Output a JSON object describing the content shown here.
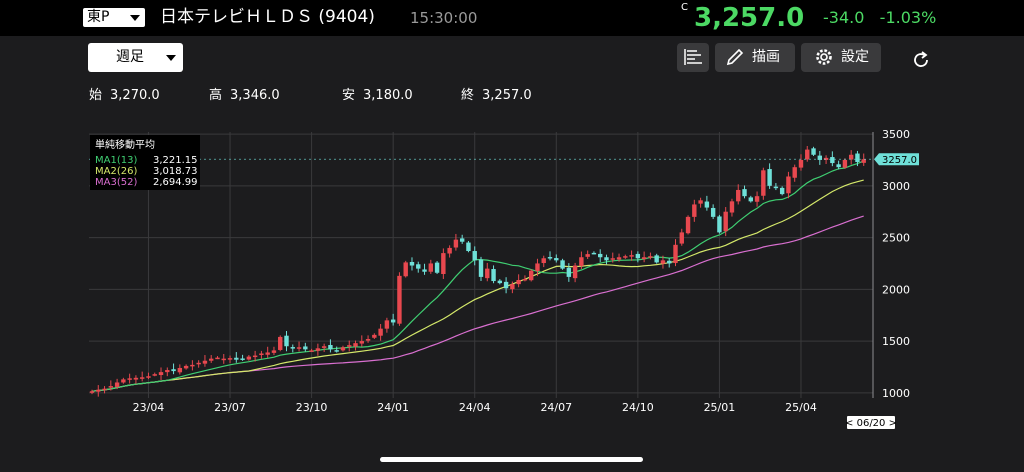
{
  "header": {
    "market": "東P",
    "name": "日本テレビＨＬＤＳ",
    "code": "(9404)",
    "time": "15:30:00",
    "price_flag": "C",
    "price": "3,257.0",
    "change": "-34.0",
    "change_pct": "-1.03%"
  },
  "toolbar": {
    "period": "週足",
    "draw_label": "描画",
    "settings_label": "設定"
  },
  "ohlc": {
    "open_label": "始",
    "open": "3,270.0",
    "high_label": "高",
    "high": "3,346.0",
    "low_label": "安",
    "low": "3,180.0",
    "close_label": "終",
    "close": "3,257.0"
  },
  "colors": {
    "up": "#e8484f",
    "down": "#6fe0d8",
    "ma1": "#3fcf72",
    "ma2": "#d4e86a",
    "ma3": "#d96fd0",
    "price_accent": "#4cd964"
  },
  "chart_data": {
    "type": "candlestick",
    "legend": {
      "title": "単純移動平均",
      "items": [
        {
          "name": "MA1(13)",
          "value": "3,221.15"
        },
        {
          "name": "MA2(26)",
          "value": "3,018.73"
        },
        {
          "name": "MA3(52)",
          "value": "2,694.99"
        }
      ]
    },
    "ylim": [
      950,
      3520
    ],
    "y_ticks": [
      1000,
      1500,
      2000,
      2500,
      3000,
      3500
    ],
    "x_ticks": [
      {
        "label": "23/04",
        "week": 9
      },
      {
        "label": "23/07",
        "week": 22
      },
      {
        "label": "23/10",
        "week": 35
      },
      {
        "label": "24/01",
        "week": 48
      },
      {
        "label": "24/04",
        "week": 61
      },
      {
        "label": "24/07",
        "week": 74
      },
      {
        "label": "24/10",
        "week": 87
      },
      {
        "label": "25/01",
        "week": 100
      },
      {
        "label": "25/04",
        "week": 113
      }
    ],
    "x_range": [
      0,
      124
    ],
    "current_price": "3257.0",
    "current_price_value": 3257,
    "end_date": "< 06/20 >",
    "closes": [
      1015,
      1030,
      1040,
      1065,
      1100,
      1130,
      1140,
      1145,
      1150,
      1160,
      1180,
      1200,
      1220,
      1210,
      1240,
      1260,
      1270,
      1290,
      1310,
      1330,
      1340,
      1330,
      1335,
      1320,
      1330,
      1350,
      1360,
      1380,
      1390,
      1410,
      1540,
      1450,
      1430,
      1440,
      1420,
      1410,
      1430,
      1450,
      1420,
      1410,
      1440,
      1460,
      1480,
      1500,
      1520,
      1560,
      1620,
      1700,
      1680,
      2130,
      2260,
      2230,
      2200,
      2170,
      2250,
      2160,
      2350,
      2400,
      2480,
      2460,
      2370,
      2280,
      2120,
      2200,
      2080,
      2060,
      2010,
      2050,
      2090,
      2100,
      2180,
      2250,
      2300,
      2310,
      2280,
      2200,
      2120,
      2230,
      2310,
      2340,
      2350,
      2310,
      2280,
      2300,
      2310,
      2320,
      2330,
      2300,
      2310,
      2320,
      2260,
      2280,
      2250,
      2430,
      2550,
      2700,
      2820,
      2860,
      2790,
      2700,
      2550,
      2750,
      2850,
      2960,
      2900,
      2850,
      2900,
      3150,
      3000,
      2980,
      2920,
      3090,
      3180,
      3250,
      3350,
      3300,
      3250,
      3270,
      3220,
      3180,
      3250,
      3300,
      3230,
      3257
    ]
  }
}
